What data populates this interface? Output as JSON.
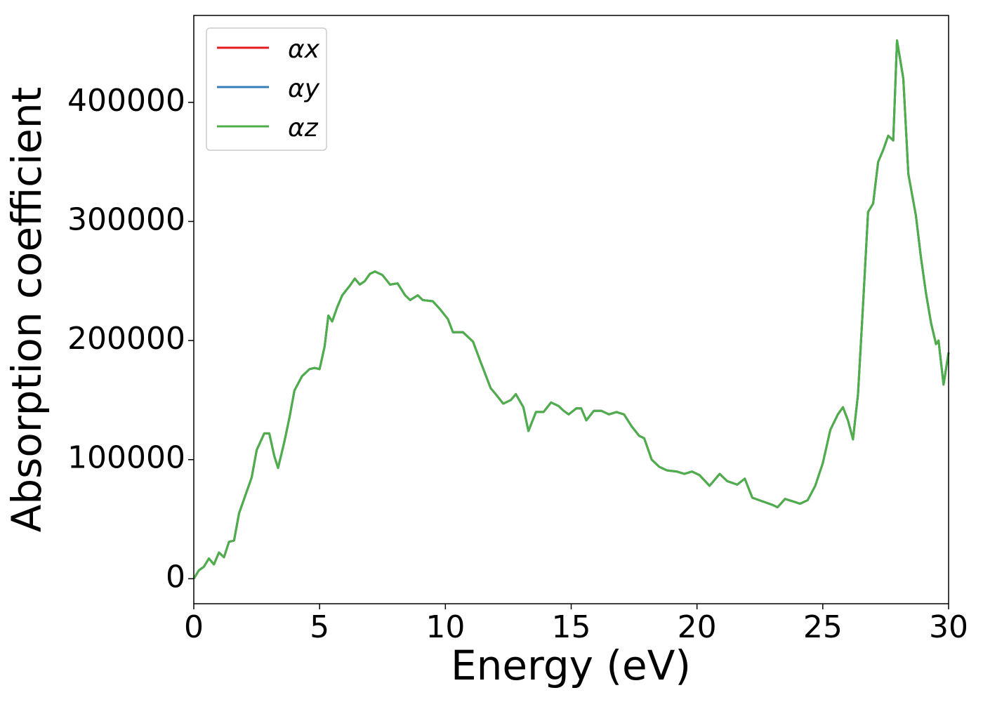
{
  "chart_data": {
    "type": "line",
    "xlabel": "Energy (eV)",
    "ylabel": "Absorption coefficient",
    "x": [
      0,
      0.2,
      0.4,
      0.6,
      0.8,
      1.0,
      1.2,
      1.4,
      1.6,
      1.8,
      2.0,
      2.3,
      2.5,
      2.8,
      3.0,
      3.2,
      3.35,
      3.6,
      3.8,
      4.0,
      4.3,
      4.6,
      4.8,
      5.0,
      5.2,
      5.35,
      5.5,
      5.7,
      5.9,
      6.2,
      6.4,
      6.6,
      6.8,
      7.0,
      7.2,
      7.5,
      7.8,
      8.1,
      8.4,
      8.6,
      8.9,
      9.1,
      9.5,
      9.8,
      10.1,
      10.3,
      10.7,
      10.9,
      11.1,
      11.4,
      11.8,
      12.0,
      12.3,
      12.6,
      12.8,
      13.1,
      13.3,
      13.6,
      13.9,
      14.2,
      14.5,
      14.7,
      14.9,
      15.2,
      15.4,
      15.6,
      15.9,
      16.2,
      16.5,
      16.8,
      17.1,
      17.4,
      17.7,
      17.9,
      18.2,
      18.5,
      18.8,
      19.2,
      19.5,
      19.8,
      20.1,
      20.5,
      20.9,
      21.2,
      21.6,
      21.9,
      22.2,
      22.6,
      23.0,
      23.2,
      23.5,
      23.8,
      24.1,
      24.4,
      24.7,
      25.0,
      25.3,
      25.6,
      25.8,
      26.0,
      26.2,
      26.4,
      26.6,
      26.8,
      27.0,
      27.2,
      27.4,
      27.6,
      27.8,
      27.95,
      28.2,
      28.4,
      28.7,
      28.9,
      29.1,
      29.3,
      29.5,
      29.6,
      29.8,
      30.0
    ],
    "series": [
      {
        "name": "αx",
        "color": "#e41a1c",
        "values": [
          0,
          7000,
          10000,
          17000,
          12000,
          22000,
          18000,
          31000,
          32000,
          55000,
          67000,
          85000,
          108000,
          122000,
          122000,
          103000,
          93000,
          115000,
          135000,
          158000,
          170000,
          176000,
          177000,
          176000,
          195000,
          221000,
          216000,
          228000,
          238000,
          246000,
          252000,
          247000,
          250000,
          256000,
          258000,
          255000,
          247000,
          248000,
          238000,
          234000,
          238000,
          234000,
          233000,
          226000,
          218000,
          207000,
          207000,
          203000,
          199000,
          182000,
          160000,
          155000,
          147000,
          150000,
          155000,
          144000,
          124000,
          140000,
          140000,
          148000,
          145000,
          141000,
          138000,
          143000,
          143000,
          133000,
          141000,
          141000,
          138000,
          140000,
          138000,
          128000,
          120000,
          118000,
          100000,
          94000,
          91000,
          90000,
          88000,
          90000,
          87000,
          78000,
          88000,
          82000,
          79000,
          84000,
          68000,
          65000,
          62000,
          60000,
          67000,
          65000,
          63000,
          66000,
          78000,
          97000,
          125000,
          138000,
          144000,
          133000,
          117000,
          155000,
          230000,
          308000,
          315000,
          350000,
          360000,
          372000,
          368000,
          452000,
          420000,
          340000,
          305000,
          270000,
          240000,
          215000,
          197000,
          200000,
          163000,
          190000
        ]
      },
      {
        "name": "αy",
        "color": "#377eb8",
        "values": [
          0,
          7000,
          10000,
          17000,
          12000,
          22000,
          18000,
          31000,
          32000,
          55000,
          67000,
          85000,
          108000,
          122000,
          122000,
          103000,
          93000,
          115000,
          135000,
          158000,
          170000,
          176000,
          177000,
          176000,
          195000,
          221000,
          216000,
          228000,
          238000,
          246000,
          252000,
          247000,
          250000,
          256000,
          258000,
          255000,
          247000,
          248000,
          238000,
          234000,
          238000,
          234000,
          233000,
          226000,
          218000,
          207000,
          207000,
          203000,
          199000,
          182000,
          160000,
          155000,
          147000,
          150000,
          155000,
          144000,
          124000,
          140000,
          140000,
          148000,
          145000,
          141000,
          138000,
          143000,
          143000,
          133000,
          141000,
          141000,
          138000,
          140000,
          138000,
          128000,
          120000,
          118000,
          100000,
          94000,
          91000,
          90000,
          88000,
          90000,
          87000,
          78000,
          88000,
          82000,
          79000,
          84000,
          68000,
          65000,
          62000,
          60000,
          67000,
          65000,
          63000,
          66000,
          78000,
          97000,
          125000,
          138000,
          144000,
          133000,
          117000,
          155000,
          230000,
          308000,
          315000,
          350000,
          360000,
          372000,
          368000,
          452000,
          420000,
          340000,
          305000,
          270000,
          240000,
          215000,
          197000,
          200000,
          163000,
          190000
        ]
      },
      {
        "name": "αz",
        "color": "#4daf4a",
        "values": [
          0,
          7000,
          10000,
          17000,
          12000,
          22000,
          18000,
          31000,
          32000,
          55000,
          67000,
          85000,
          108000,
          122000,
          122000,
          103000,
          93000,
          115000,
          135000,
          158000,
          170000,
          176000,
          177000,
          176000,
          195000,
          221000,
          216000,
          228000,
          238000,
          246000,
          252000,
          247000,
          250000,
          256000,
          258000,
          255000,
          247000,
          248000,
          238000,
          234000,
          238000,
          234000,
          233000,
          226000,
          218000,
          207000,
          207000,
          203000,
          199000,
          182000,
          160000,
          155000,
          147000,
          150000,
          155000,
          144000,
          124000,
          140000,
          140000,
          148000,
          145000,
          141000,
          138000,
          143000,
          143000,
          133000,
          141000,
          141000,
          138000,
          140000,
          138000,
          128000,
          120000,
          118000,
          100000,
          94000,
          91000,
          90000,
          88000,
          90000,
          87000,
          78000,
          88000,
          82000,
          79000,
          84000,
          68000,
          65000,
          62000,
          60000,
          67000,
          65000,
          63000,
          66000,
          78000,
          97000,
          125000,
          138000,
          144000,
          133000,
          117000,
          155000,
          230000,
          308000,
          315000,
          350000,
          360000,
          372000,
          368000,
          452000,
          420000,
          340000,
          305000,
          270000,
          240000,
          215000,
          197000,
          200000,
          163000,
          190000
        ]
      }
    ],
    "xlim": [
      0,
      30
    ],
    "xticks": [
      0,
      5,
      10,
      15,
      20,
      25,
      30
    ],
    "ylim": [
      -21000,
      473000
    ],
    "yticks": [
      0,
      100000,
      200000,
      300000,
      400000
    ],
    "legend": "upper left"
  }
}
